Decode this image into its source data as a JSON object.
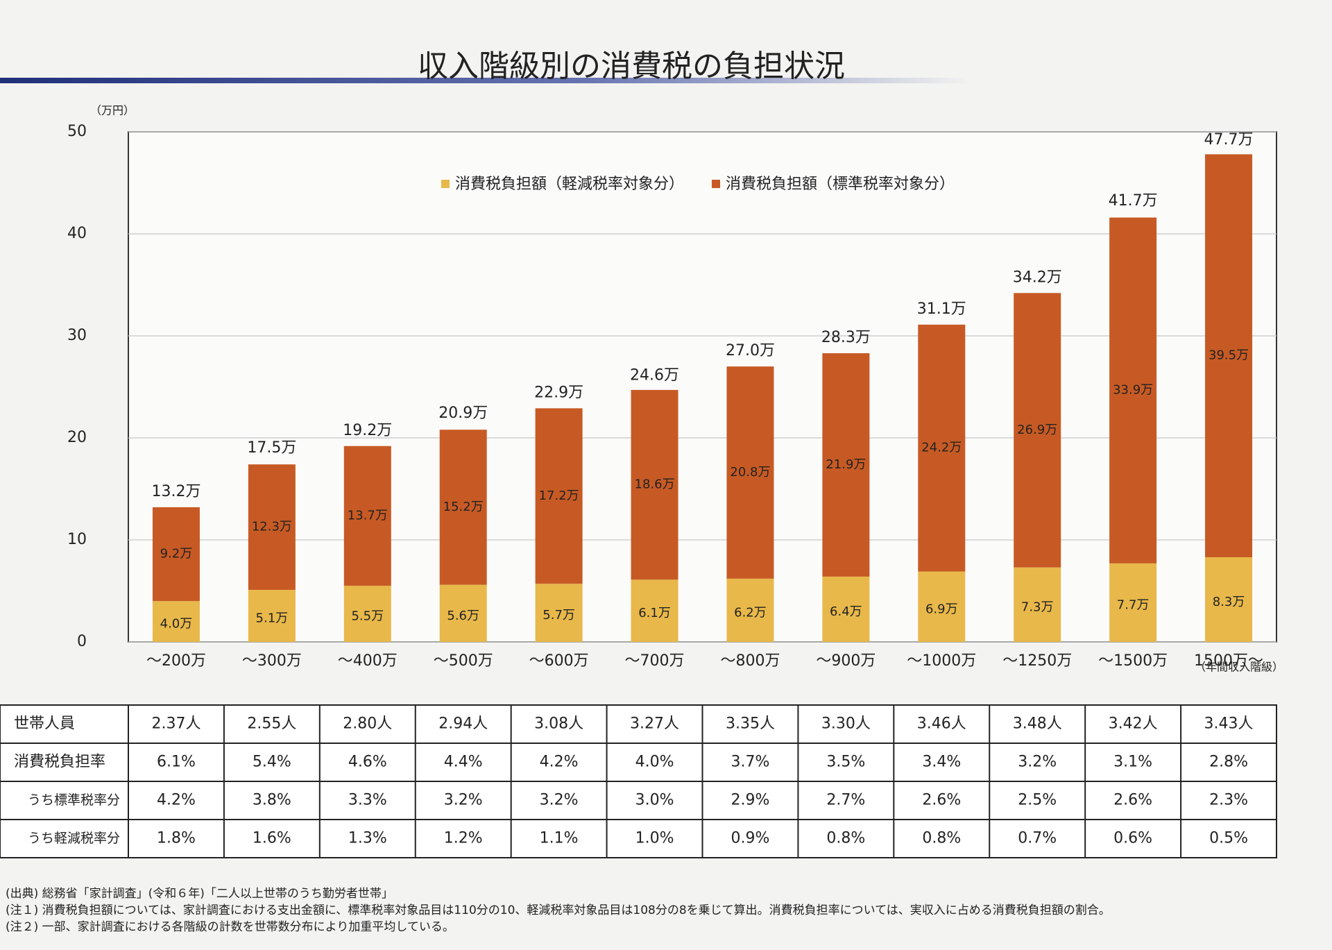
{
  "chart_data": {
    "type": "stacked_bar",
    "title": "収入階級別の消費税の負担状況",
    "y_label": "（万円）",
    "x_label": "（年間収入階級）",
    "categories": [
      "～200万",
      "～300万",
      "～400万",
      "～500万",
      "～600万",
      "～700万",
      "～800万",
      "～900万",
      "～1000万",
      "～1250万",
      "～1500万",
      "1500万～"
    ],
    "series": [
      {
        "name": "消費税負担額（軽減税率対象分）",
        "color": "#e8b84a",
        "values": [
          4.0,
          5.1,
          5.5,
          5.6,
          5.7,
          6.1,
          6.2,
          6.4,
          6.9,
          7.3,
          7.7,
          8.3
        ],
        "value_labels": [
          "4.0万",
          "5.1万",
          "5.5万",
          "5.6万",
          "5.7万",
          "6.1万",
          "6.2万",
          "6.4万",
          "6.9万",
          "7.3万",
          "7.7万",
          "8.3万"
        ]
      },
      {
        "name": "消費税負担額（標準税率対象分）",
        "color": "#c75a24",
        "values": [
          9.2,
          12.3,
          13.7,
          15.2,
          17.2,
          18.6,
          20.8,
          21.9,
          24.2,
          26.9,
          33.9,
          39.5
        ],
        "value_labels": [
          "9.2万",
          "12.3万",
          "13.7万",
          "15.2万",
          "17.2万",
          "18.6万",
          "20.8万",
          "21.9万",
          "24.2万",
          "26.9万",
          "33.9万",
          "39.5万"
        ]
      }
    ],
    "totals": {
      "values": [
        13.2,
        17.5,
        19.2,
        20.9,
        22.9,
        24.6,
        27.0,
        28.3,
        31.1,
        34.2,
        41.7,
        47.7
      ],
      "value_labels": [
        "13.2万",
        "17.5万",
        "19.2万",
        "20.9万",
        "22.9万",
        "24.6万",
        "27.0万",
        "28.3万",
        "31.1万",
        "34.2万",
        "41.7万",
        "47.7万"
      ]
    },
    "ylim": [
      0,
      50
    ],
    "yticks": [
      0,
      10,
      20,
      30,
      40,
      50
    ],
    "grid": true,
    "legend": "top"
  },
  "table": {
    "rows": [
      {
        "label": "世帯人員",
        "values": [
          "2.37人",
          "2.55人",
          "2.80人",
          "2.94人",
          "3.08人",
          "3.27人",
          "3.35人",
          "3.30人",
          "3.46人",
          "3.48人",
          "3.42人",
          "3.43人"
        ]
      },
      {
        "label": "消費税負担率",
        "values": [
          "6.1%",
          "5.4%",
          "4.6%",
          "4.4%",
          "4.2%",
          "4.0%",
          "3.7%",
          "3.5%",
          "3.4%",
          "3.2%",
          "3.1%",
          "2.8%"
        ]
      },
      {
        "label": "うち標準税率分",
        "values": [
          "4.2%",
          "3.8%",
          "3.3%",
          "3.2%",
          "3.2%",
          "3.0%",
          "2.9%",
          "2.7%",
          "2.6%",
          "2.5%",
          "2.6%",
          "2.3%"
        ]
      },
      {
        "label": "うち軽減税率分",
        "values": [
          "1.8%",
          "1.6%",
          "1.3%",
          "1.2%",
          "1.1%",
          "1.0%",
          "0.9%",
          "0.8%",
          "0.8%",
          "0.7%",
          "0.6%",
          "0.5%"
        ]
      }
    ]
  },
  "notes": [
    "(出典) 総務省「家計調査」(令和６年)「二人以上世帯のうち勤労者世帯」",
    "(注１) 消費税負担額については、家計調査における支出金額に、標準税率対象品目は110分の10、軽減税率対象品目は108分の8を乗じて算出。消費税負担率については、実収入に占める消費税負担額の割合。",
    "(注２) 一部、家計調査における各階級の計数を世帯数分布により加重平均している。"
  ]
}
